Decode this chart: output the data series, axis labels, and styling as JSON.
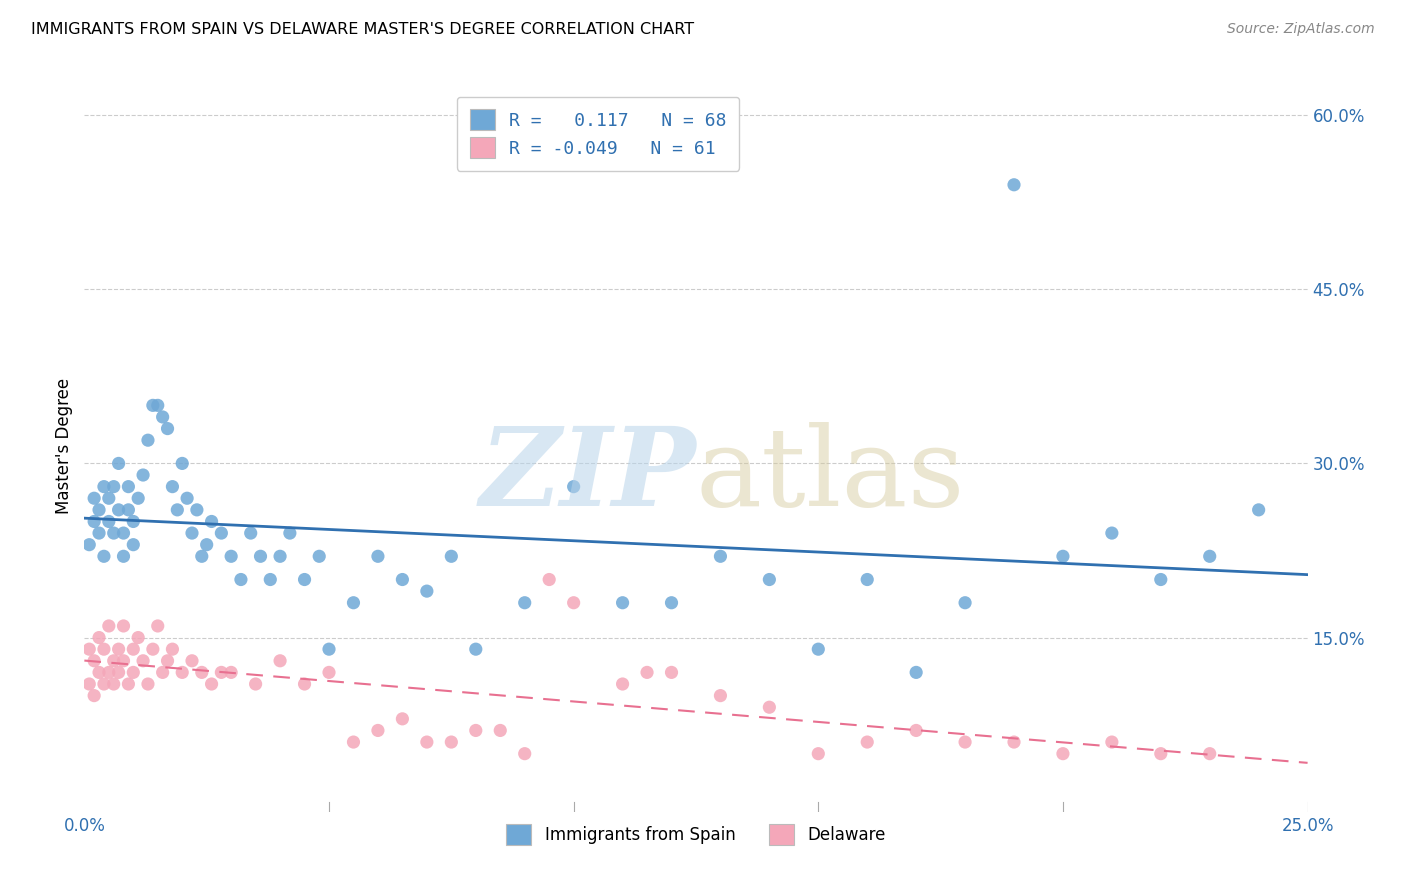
{
  "title": "IMMIGRANTS FROM SPAIN VS DELAWARE MASTER'S DEGREE CORRELATION CHART",
  "source": "Source: ZipAtlas.com",
  "ylabel": "Master's Degree",
  "xlim": [
    0.0,
    0.25
  ],
  "ylim": [
    0.0,
    0.63
  ],
  "yticks": [
    0.0,
    0.15,
    0.3,
    0.45,
    0.6
  ],
  "ytick_labels": [
    "",
    "15.0%",
    "30.0%",
    "45.0%",
    "60.0%"
  ],
  "xticks": [
    0.0,
    0.05,
    0.1,
    0.15,
    0.2,
    0.25
  ],
  "xtick_labels": [
    "0.0%",
    "",
    "",
    "",
    "",
    "25.0%"
  ],
  "blue_R": 0.117,
  "blue_N": 68,
  "pink_R": -0.049,
  "pink_N": 61,
  "blue_color": "#6fa8d6",
  "pink_color": "#f4a7b9",
  "blue_line_color": "#3070b0",
  "pink_line_color": "#e87090",
  "legend_label_blue": "Immigrants from Spain",
  "legend_label_pink": "Delaware",
  "blue_scatter_x": [
    0.001,
    0.002,
    0.002,
    0.003,
    0.003,
    0.004,
    0.004,
    0.005,
    0.005,
    0.006,
    0.006,
    0.007,
    0.007,
    0.008,
    0.008,
    0.009,
    0.009,
    0.01,
    0.01,
    0.011,
    0.012,
    0.013,
    0.014,
    0.015,
    0.016,
    0.017,
    0.018,
    0.019,
    0.02,
    0.021,
    0.022,
    0.023,
    0.024,
    0.025,
    0.026,
    0.028,
    0.03,
    0.032,
    0.034,
    0.036,
    0.038,
    0.04,
    0.042,
    0.045,
    0.048,
    0.05,
    0.055,
    0.06,
    0.065,
    0.07,
    0.075,
    0.08,
    0.09,
    0.1,
    0.11,
    0.12,
    0.13,
    0.14,
    0.15,
    0.16,
    0.17,
    0.18,
    0.19,
    0.2,
    0.21,
    0.22,
    0.23,
    0.24
  ],
  "blue_scatter_y": [
    0.23,
    0.25,
    0.27,
    0.24,
    0.26,
    0.28,
    0.22,
    0.25,
    0.27,
    0.24,
    0.28,
    0.26,
    0.3,
    0.22,
    0.24,
    0.26,
    0.28,
    0.23,
    0.25,
    0.27,
    0.29,
    0.32,
    0.35,
    0.35,
    0.34,
    0.33,
    0.28,
    0.26,
    0.3,
    0.27,
    0.24,
    0.26,
    0.22,
    0.23,
    0.25,
    0.24,
    0.22,
    0.2,
    0.24,
    0.22,
    0.2,
    0.22,
    0.24,
    0.2,
    0.22,
    0.14,
    0.18,
    0.22,
    0.2,
    0.19,
    0.22,
    0.14,
    0.18,
    0.28,
    0.18,
    0.18,
    0.22,
    0.2,
    0.14,
    0.2,
    0.12,
    0.18,
    0.54,
    0.22,
    0.24,
    0.2,
    0.22,
    0.26
  ],
  "pink_scatter_x": [
    0.001,
    0.001,
    0.002,
    0.002,
    0.003,
    0.003,
    0.004,
    0.004,
    0.005,
    0.005,
    0.006,
    0.006,
    0.007,
    0.007,
    0.008,
    0.008,
    0.009,
    0.01,
    0.01,
    0.011,
    0.012,
    0.013,
    0.014,
    0.015,
    0.016,
    0.017,
    0.018,
    0.02,
    0.022,
    0.024,
    0.026,
    0.028,
    0.03,
    0.035,
    0.04,
    0.045,
    0.05,
    0.055,
    0.06,
    0.065,
    0.07,
    0.075,
    0.08,
    0.085,
    0.09,
    0.095,
    0.1,
    0.11,
    0.115,
    0.12,
    0.13,
    0.14,
    0.15,
    0.16,
    0.17,
    0.18,
    0.19,
    0.2,
    0.21,
    0.22,
    0.23
  ],
  "pink_scatter_y": [
    0.11,
    0.14,
    0.1,
    0.13,
    0.12,
    0.15,
    0.11,
    0.14,
    0.12,
    0.16,
    0.13,
    0.11,
    0.14,
    0.12,
    0.13,
    0.16,
    0.11,
    0.14,
    0.12,
    0.15,
    0.13,
    0.11,
    0.14,
    0.16,
    0.12,
    0.13,
    0.14,
    0.12,
    0.13,
    0.12,
    0.11,
    0.12,
    0.12,
    0.11,
    0.13,
    0.11,
    0.12,
    0.06,
    0.07,
    0.08,
    0.06,
    0.06,
    0.07,
    0.07,
    0.05,
    0.2,
    0.18,
    0.11,
    0.12,
    0.12,
    0.1,
    0.09,
    0.05,
    0.06,
    0.07,
    0.06,
    0.06,
    0.05,
    0.06,
    0.05,
    0.05
  ]
}
